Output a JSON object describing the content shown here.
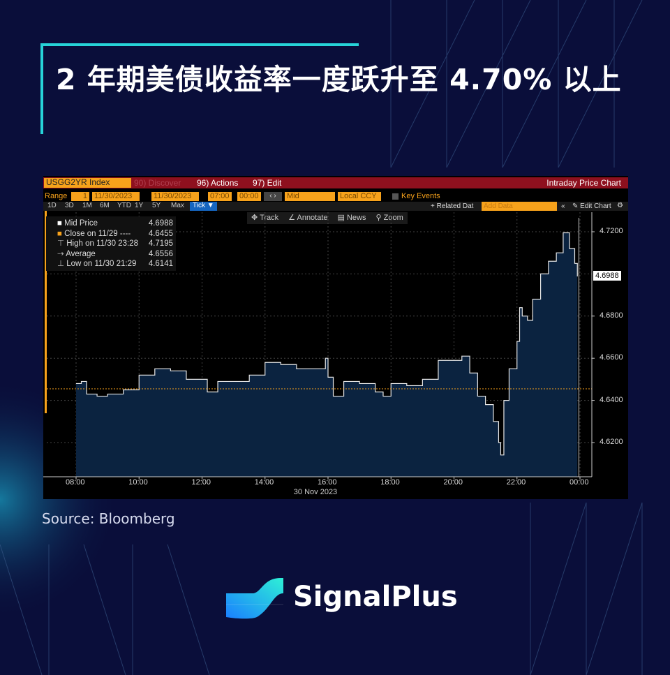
{
  "title": "2 年期美债收益率一度跃升至 4.70% 以上",
  "source": "Source: Bloomberg",
  "brand": {
    "name": "SignalPlus",
    "logo_colors": [
      "#1a8cff",
      "#22e6d6"
    ]
  },
  "colors": {
    "background": "#0a0e3a",
    "accent": "#27d3d8",
    "bbg_orange": "#f7a21b",
    "bbg_red": "#8e101e",
    "area_fill": "#0b2340"
  },
  "terminal": {
    "ticker": "USGG2YR Index",
    "discover": "90) Discover",
    "actions": "96) Actions",
    "edit": "97) Edit",
    "window_title": "Intraday Price Chart",
    "range_label": "Range",
    "range_n": "1",
    "start_date": "11/30/2023",
    "end_date": "11/30/2023",
    "start_time": "07:00",
    "end_time": "00:00",
    "price_type": "Mid",
    "currency": "Local CCY",
    "key_events": "Key Events",
    "periods": [
      "1D",
      "3D",
      "1M",
      "6M",
      "YTD",
      "1Y",
      "5Y",
      "Max"
    ],
    "period_selected": "Tick ▼",
    "related": "+ Related Dat",
    "add_data_placeholder": "Add Data",
    "edit_chart": "Edit Chart",
    "tools": [
      "Track",
      "Annotate",
      "News",
      "Zoom"
    ],
    "legend": [
      {
        "label": "Mid Price",
        "value": "4.6988"
      },
      {
        "label": "Close on 11/29 ----",
        "value": "4.6455"
      },
      {
        "label": "High on 11/30 23:28",
        "value": "4.7195"
      },
      {
        "label": "Average",
        "value": "4.6556"
      },
      {
        "label": "Low on 11/30 21:29",
        "value": "4.6141"
      }
    ],
    "last_price_label": "4.6988",
    "date_label": "30 Nov 2023"
  },
  "chart_data": {
    "type": "area",
    "ylim": [
      4.61,
      4.725
    ],
    "y_ticks": [
      "4.7200",
      "4.6800",
      "4.6600",
      "4.6400",
      "4.6200"
    ],
    "x_ticks": [
      "08:00",
      "10:00",
      "12:00",
      "14:00",
      "16:00",
      "18:00",
      "20:00",
      "22:00",
      "00:00"
    ],
    "reference_line": {
      "label": "Close on 11/29",
      "value": 4.6455
    },
    "series": [
      {
        "name": "Mid Price",
        "points": [
          [
            "08:00",
            4.648
          ],
          [
            "08:10",
            4.649
          ],
          [
            "08:20",
            4.643
          ],
          [
            "08:40",
            4.642
          ],
          [
            "09:00",
            4.643
          ],
          [
            "09:30",
            4.645
          ],
          [
            "10:00",
            4.652
          ],
          [
            "10:30",
            4.655
          ],
          [
            "11:00",
            4.654
          ],
          [
            "11:30",
            4.65
          ],
          [
            "12:00",
            4.65
          ],
          [
            "12:10",
            4.644
          ],
          [
            "12:30",
            4.649
          ],
          [
            "13:00",
            4.649
          ],
          [
            "13:30",
            4.652
          ],
          [
            "14:00",
            4.658
          ],
          [
            "14:30",
            4.657
          ],
          [
            "15:00",
            4.655
          ],
          [
            "15:30",
            4.655
          ],
          [
            "15:55",
            4.66
          ],
          [
            "16:00",
            4.651
          ],
          [
            "16:10",
            4.642
          ],
          [
            "16:30",
            4.649
          ],
          [
            "17:00",
            4.648
          ],
          [
            "17:30",
            4.644
          ],
          [
            "17:45",
            4.642
          ],
          [
            "18:00",
            4.648
          ],
          [
            "18:30",
            4.647
          ],
          [
            "19:00",
            4.65
          ],
          [
            "19:30",
            4.659
          ],
          [
            "20:00",
            4.659
          ],
          [
            "20:15",
            4.661
          ],
          [
            "20:30",
            4.653
          ],
          [
            "20:45",
            4.642
          ],
          [
            "21:00",
            4.638
          ],
          [
            "21:15",
            4.63
          ],
          [
            "21:25",
            4.62
          ],
          [
            "21:29",
            4.6141
          ],
          [
            "21:35",
            4.64
          ],
          [
            "21:45",
            4.655
          ],
          [
            "22:00",
            4.668
          ],
          [
            "22:05",
            4.684
          ],
          [
            "22:10",
            4.68
          ],
          [
            "22:20",
            4.678
          ],
          [
            "22:30",
            4.688
          ],
          [
            "22:45",
            4.7
          ],
          [
            "23:00",
            4.706
          ],
          [
            "23:15",
            4.71
          ],
          [
            "23:28",
            4.7195
          ],
          [
            "23:40",
            4.712
          ],
          [
            "23:50",
            4.705
          ],
          [
            "23:55",
            4.6988
          ]
        ]
      }
    ]
  }
}
